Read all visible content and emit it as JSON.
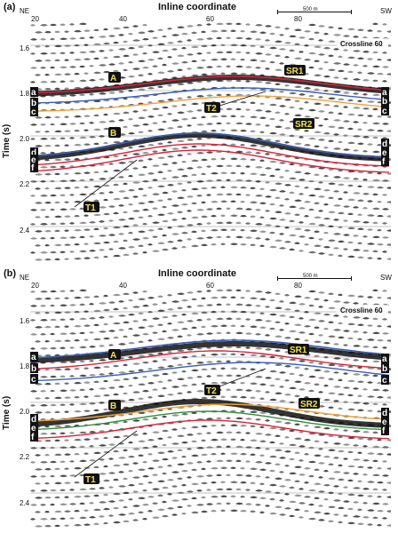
{
  "panels": [
    {
      "label": "(a)",
      "title": "Inline coordinate",
      "dir_left": "NE",
      "dir_right": "SW",
      "scale": "500 m",
      "crossline": "Crossline 60",
      "y_title": "Time (s)",
      "x_ticks": [
        "20",
        "40",
        "60",
        "80"
      ],
      "y_ticks": [
        "1.6",
        "1.8",
        "2.0",
        "2.2",
        "2.4"
      ],
      "horizon_labels_big": [
        "A",
        "B"
      ],
      "faults": [
        "T1",
        "T2"
      ],
      "reflections": [
        "SR1",
        "SR2"
      ],
      "edge_letters": [
        "a",
        "b",
        "c",
        "d",
        "e",
        "f"
      ]
    },
    {
      "label": "(b)",
      "title": "Inline coordinate",
      "dir_left": "NE",
      "dir_right": "SW",
      "scale": "500 m",
      "crossline": "Crossline 60",
      "y_title": "Time (s)",
      "x_ticks": [
        "20",
        "40",
        "60",
        "80"
      ],
      "y_ticks": [
        "1.6",
        "1.8",
        "2.0",
        "2.2",
        "2.4"
      ],
      "horizon_labels_big": [
        "A",
        "B"
      ],
      "faults": [
        "T1",
        "T2"
      ],
      "reflections": [
        "SR1",
        "SR2"
      ],
      "edge_letters": [
        "a",
        "b",
        "c",
        "d",
        "e",
        "f"
      ]
    }
  ],
  "colors": {
    "red": "#d6233a",
    "blue": "#3a5fb8",
    "orange": "#f0a33a",
    "green": "#2f8f3a",
    "trough": "#111111",
    "label_bg": "#111111",
    "label_fg": "#f2e24a"
  }
}
